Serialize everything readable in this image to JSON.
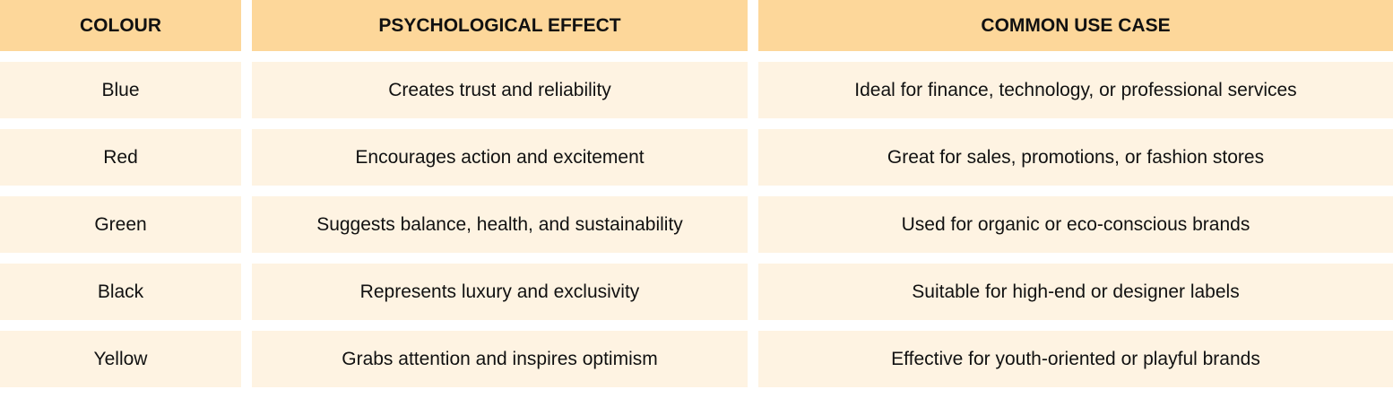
{
  "table": {
    "headers": [
      "COLOUR",
      "PSYCHOLOGICAL EFFECT",
      "COMMON USE CASE"
    ],
    "rows": [
      [
        "Blue",
        "Creates trust and reliability",
        "Ideal for finance, technology, or professional services"
      ],
      [
        "Red",
        "Encourages action and excitement",
        "Great for sales, promotions, or fashion stores"
      ],
      [
        "Green",
        "Suggests balance, health, and sustainability",
        "Used for organic or eco-conscious brands"
      ],
      [
        "Black",
        "Represents luxury and exclusivity",
        "Suitable for high-end or designer labels"
      ],
      [
        "Yellow",
        "Grabs attention and inspires optimism",
        "Effective for youth-oriented or playful brands"
      ]
    ]
  },
  "colors": {
    "header_bg": "#fdd79a",
    "cell_bg": "#fef3e2"
  }
}
